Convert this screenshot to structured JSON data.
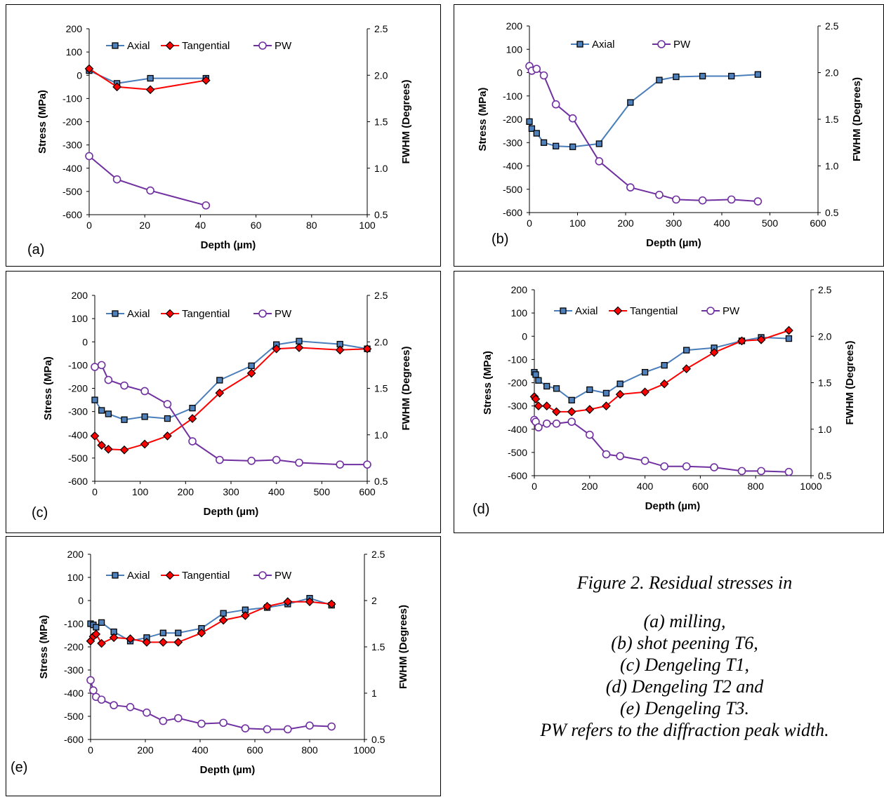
{
  "figure_caption": {
    "title": "Figure 2. Residual stresses in",
    "lines": [
      "(a) milling,",
      "(b) shot peening T6,",
      "(c) Dengeling T1,",
      "(d) Dengeling T2 and",
      "(e) Dengeling T3.",
      "PW refers to the diffraction peak width."
    ]
  },
  "colors": {
    "axial": "#4a7ebb",
    "tangential": "#ff0000",
    "pw": "#7030a0",
    "marker_axial_fill": "#4f81bd"
  },
  "chart_data": [
    {
      "panel_label": "(a)",
      "type": "line",
      "xlabel": "Depth (µm)",
      "ylabel": "Stress (MPa)",
      "y2label": "FWHM (Degrees)",
      "xlim": [
        0,
        100
      ],
      "xticks": [
        "0",
        "20",
        "40",
        "60",
        "80",
        "100"
      ],
      "ylim": [
        -600,
        200
      ],
      "yticks": [
        "200",
        "100",
        "0",
        "-100",
        "-200",
        "-300",
        "-400",
        "-500",
        "-600"
      ],
      "y2lim": [
        0.5,
        2.5
      ],
      "y2ticks": [
        "2.5",
        "2.0",
        "1.5",
        "1.0",
        "0.5"
      ],
      "legend": [
        "Axial",
        "Tangential",
        "PW"
      ],
      "series": [
        {
          "name": "Axial",
          "axis": "left",
          "x": [
            0,
            10,
            22,
            42
          ],
          "y": [
            20,
            -35,
            -13,
            -13
          ]
        },
        {
          "name": "Tangential",
          "axis": "left",
          "x": [
            0,
            10,
            22,
            42
          ],
          "y": [
            28,
            -50,
            -62,
            -22
          ]
        },
        {
          "name": "PW",
          "axis": "right",
          "x": [
            0,
            10,
            22,
            42
          ],
          "y": [
            1.13,
            0.88,
            0.76,
            0.6
          ]
        }
      ]
    },
    {
      "panel_label": "(b)",
      "type": "line",
      "xlabel": "Depth (µm)",
      "ylabel": "Stress (MPa)",
      "y2label": "FWHM (Degrees)",
      "xlim": [
        0,
        600
      ],
      "xticks": [
        "0",
        "100",
        "200",
        "300",
        "400",
        "500",
        "600"
      ],
      "ylim": [
        -600,
        200
      ],
      "yticks": [
        "200",
        "100",
        "0",
        "-100",
        "-200",
        "-300",
        "-400",
        "-500",
        "-600"
      ],
      "y2lim": [
        0.5,
        2.5
      ],
      "y2ticks": [
        "2.5",
        "2.0",
        "1.5",
        "1.0",
        "0.5"
      ],
      "legend": [
        "Axial",
        "PW"
      ],
      "series": [
        {
          "name": "Axial",
          "axis": "left",
          "x": [
            0,
            5,
            15,
            30,
            55,
            90,
            145,
            210,
            270,
            305,
            360,
            420,
            475
          ],
          "y": [
            -210,
            -240,
            -260,
            -300,
            -315,
            -318,
            -305,
            -128,
            -32,
            -18,
            -15,
            -15,
            -8
          ]
        },
        {
          "name": "PW",
          "axis": "right",
          "x": [
            0,
            5,
            15,
            30,
            55,
            90,
            145,
            210,
            270,
            305,
            360,
            420,
            475
          ],
          "y": [
            2.07,
            2.02,
            2.04,
            1.97,
            1.66,
            1.51,
            1.05,
            0.77,
            0.69,
            0.64,
            0.63,
            0.64,
            0.62
          ]
        }
      ]
    },
    {
      "panel_label": "(c)",
      "type": "line",
      "xlabel": "Depth (µm)",
      "ylabel": "Stress (MPa)",
      "y2label": "FWHM (Degrees)",
      "xlim": [
        0,
        600
      ],
      "xticks": [
        "0",
        "100",
        "200",
        "300",
        "400",
        "500",
        "600"
      ],
      "ylim": [
        -600,
        200
      ],
      "yticks": [
        "200",
        "100",
        "0",
        "-100",
        "-200",
        "-300",
        "-400",
        "-500",
        "-600"
      ],
      "y2lim": [
        0.5,
        2.5
      ],
      "y2ticks": [
        "2.5",
        "2.0",
        "1.5",
        "1.0",
        "0.5"
      ],
      "legend": [
        "Axial",
        "Tangential",
        "PW"
      ],
      "series": [
        {
          "name": "Axial",
          "axis": "left",
          "x": [
            0,
            15,
            30,
            65,
            110,
            160,
            215,
            275,
            345,
            400,
            450,
            540,
            600
          ],
          "y": [
            -250,
            -295,
            -310,
            -335,
            -322,
            -330,
            -285,
            -165,
            -103,
            -12,
            3,
            -10,
            -30
          ]
        },
        {
          "name": "Tangential",
          "axis": "left",
          "x": [
            0,
            15,
            30,
            65,
            110,
            160,
            215,
            275,
            345,
            400,
            450,
            540,
            600
          ],
          "y": [
            -405,
            -445,
            -462,
            -465,
            -440,
            -405,
            -330,
            -220,
            -135,
            -30,
            -25,
            -35,
            -30
          ]
        },
        {
          "name": "PW",
          "axis": "right",
          "x": [
            0,
            15,
            30,
            65,
            110,
            160,
            215,
            275,
            345,
            400,
            450,
            540,
            600
          ],
          "y": [
            1.73,
            1.75,
            1.59,
            1.53,
            1.47,
            1.33,
            0.93,
            0.73,
            0.72,
            0.73,
            0.7,
            0.68,
            0.68
          ]
        }
      ]
    },
    {
      "panel_label": "(d)",
      "type": "line",
      "xlabel": "Depth (µm)",
      "ylabel": "Stress (MPa)",
      "y2label": "FWHM (Degrees)",
      "xlim": [
        0,
        1000
      ],
      "xticks": [
        "0",
        "200",
        "400",
        "600",
        "800",
        "1000"
      ],
      "ylim": [
        -600,
        200
      ],
      "yticks": [
        "200",
        "100",
        "0",
        "-100",
        "-200",
        "-300",
        "-400",
        "-500",
        "-600"
      ],
      "y2lim": [
        0.5,
        2.5
      ],
      "y2ticks": [
        "2.5",
        "2.0",
        "1.5",
        "1.0",
        "0.5"
      ],
      "legend": [
        "Axial",
        "Tangential",
        "PW"
      ],
      "series": [
        {
          "name": "Axial",
          "axis": "left",
          "x": [
            0,
            5,
            15,
            45,
            80,
            135,
            200,
            260,
            310,
            400,
            470,
            550,
            650,
            750,
            820,
            920
          ],
          "y": [
            -155,
            -165,
            -190,
            -215,
            -225,
            -275,
            -230,
            -245,
            -205,
            -155,
            -125,
            -60,
            -50,
            -20,
            -5,
            -10
          ]
        },
        {
          "name": "Tangential",
          "axis": "left",
          "x": [
            0,
            5,
            15,
            45,
            80,
            135,
            200,
            260,
            310,
            400,
            470,
            550,
            650,
            750,
            820,
            920
          ],
          "y": [
            -260,
            -270,
            -300,
            -300,
            -325,
            -325,
            -315,
            -300,
            -250,
            -240,
            -205,
            -140,
            -70,
            -20,
            -15,
            25
          ]
        },
        {
          "name": "PW",
          "axis": "right",
          "x": [
            0,
            5,
            15,
            45,
            80,
            135,
            200,
            260,
            310,
            400,
            470,
            550,
            650,
            750,
            820,
            920
          ],
          "y": [
            1.1,
            1.08,
            1.02,
            1.06,
            1.06,
            1.08,
            0.94,
            0.73,
            0.71,
            0.66,
            0.6,
            0.6,
            0.59,
            0.55,
            0.55,
            0.54
          ]
        }
      ]
    },
    {
      "panel_label": "(e)",
      "type": "line",
      "xlabel": "Depth (µm)",
      "ylabel": "Stress (MPa)",
      "y2label": "FWHM (Degrees)",
      "xlim": [
        0,
        1000
      ],
      "xticks": [
        "0",
        "200",
        "400",
        "600",
        "800",
        "1000"
      ],
      "ylim": [
        -600,
        200
      ],
      "yticks": [
        "200",
        "100",
        "0",
        "-100",
        "-200",
        "-300",
        "-400",
        "-500",
        "-600"
      ],
      "y2lim": [
        0.5,
        2.5
      ],
      "y2ticks": [
        "2.5",
        "2",
        "1.5",
        "1",
        "0.5"
      ],
      "legend": [
        "Axial",
        "Tangential",
        "PW"
      ],
      "series": [
        {
          "name": "Axial",
          "axis": "left",
          "x": [
            0,
            10,
            20,
            40,
            85,
            145,
            205,
            265,
            320,
            405,
            485,
            565,
            645,
            720,
            800,
            880
          ],
          "y": [
            -100,
            -105,
            -115,
            -95,
            -135,
            -175,
            -160,
            -140,
            -140,
            -120,
            -55,
            -40,
            -30,
            -15,
            10,
            -20
          ]
        },
        {
          "name": "Tangential",
          "axis": "left",
          "x": [
            0,
            10,
            20,
            40,
            85,
            145,
            205,
            265,
            320,
            405,
            485,
            565,
            645,
            720,
            800,
            880
          ],
          "y": [
            -175,
            -155,
            -145,
            -185,
            -160,
            -165,
            -180,
            -180,
            -180,
            -140,
            -85,
            -65,
            -25,
            -5,
            -5,
            -15
          ]
        },
        {
          "name": "PW",
          "axis": "right",
          "x": [
            0,
            10,
            20,
            40,
            85,
            145,
            205,
            265,
            320,
            405,
            485,
            565,
            645,
            720,
            800,
            880
          ],
          "y": [
            1.14,
            1.03,
            0.96,
            0.93,
            0.87,
            0.85,
            0.79,
            0.7,
            0.73,
            0.67,
            0.68,
            0.62,
            0.61,
            0.61,
            0.65,
            0.64
          ]
        }
      ]
    }
  ]
}
